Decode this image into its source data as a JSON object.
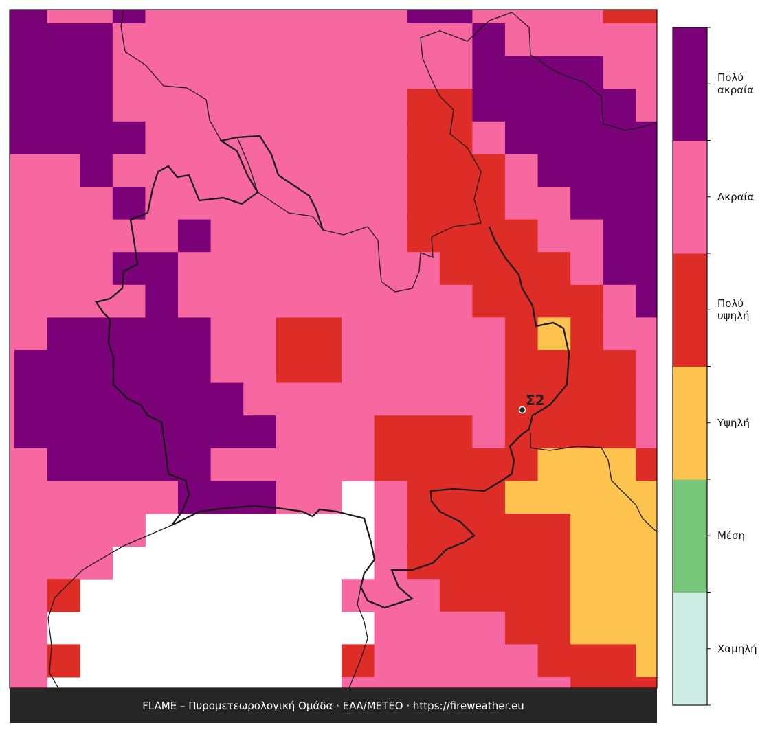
{
  "map": {
    "legend": [
      {
        "label": "Χαμηλή",
        "color": "#cdece4"
      },
      {
        "label": "Μέση",
        "color": "#78c679"
      },
      {
        "label": "Υψηλή",
        "color": "#fec44f"
      },
      {
        "label": "Πολύ υψηλή",
        "color": "#de2d26"
      },
      {
        "label": "Ακραία",
        "color": "#f768a1"
      },
      {
        "label": "Πολύ ακραία",
        "color": "#7a0177"
      }
    ],
    "grid": [
      [
        5,
        5,
        4,
        4,
        5,
        4,
        4,
        4,
        4,
        4,
        4,
        4,
        4,
        5,
        5,
        4,
        4,
        4,
        4,
        3,
        3
      ],
      [
        5,
        5,
        5,
        5,
        4,
        4,
        4,
        4,
        4,
        4,
        4,
        4,
        4,
        4,
        4,
        5,
        4,
        4,
        4,
        4,
        4
      ],
      [
        5,
        5,
        5,
        5,
        4,
        4,
        4,
        4,
        4,
        4,
        4,
        4,
        4,
        4,
        4,
        5,
        5,
        5,
        5,
        4,
        4
      ],
      [
        5,
        5,
        5,
        5,
        4,
        4,
        4,
        4,
        4,
        4,
        4,
        4,
        4,
        3,
        3,
        5,
        5,
        5,
        5,
        5,
        4
      ],
      [
        5,
        5,
        5,
        5,
        5,
        4,
        4,
        4,
        4,
        4,
        4,
        4,
        4,
        3,
        3,
        4,
        5,
        5,
        5,
        5,
        5
      ],
      [
        4,
        4,
        4,
        5,
        4,
        4,
        4,
        4,
        4,
        4,
        4,
        4,
        4,
        3,
        3,
        3,
        4,
        5,
        5,
        5,
        5
      ],
      [
        4,
        4,
        4,
        4,
        5,
        4,
        4,
        4,
        4,
        4,
        4,
        4,
        4,
        3,
        3,
        3,
        4,
        4,
        5,
        5,
        5
      ],
      [
        4,
        4,
        4,
        4,
        4,
        4,
        5,
        4,
        4,
        4,
        4,
        4,
        4,
        3,
        3,
        3,
        3,
        4,
        4,
        5,
        5
      ],
      [
        4,
        4,
        4,
        4,
        5,
        5,
        4,
        4,
        4,
        4,
        4,
        4,
        4,
        4,
        3,
        3,
        3,
        3,
        4,
        5,
        5
      ],
      [
        4,
        4,
        4,
        4,
        4,
        5,
        4,
        4,
        4,
        4,
        4,
        4,
        4,
        4,
        4,
        3,
        3,
        3,
        3,
        4,
        5
      ],
      [
        4,
        4,
        5,
        5,
        5,
        5,
        5,
        4,
        4,
        3,
        3,
        4,
        4,
        4,
        4,
        4,
        3,
        2,
        3,
        4,
        4
      ],
      [
        4,
        5,
        5,
        5,
        5,
        5,
        5,
        4,
        4,
        3,
        3,
        4,
        4,
        4,
        4,
        4,
        3,
        3,
        3,
        3,
        4
      ],
      [
        4,
        5,
        5,
        5,
        5,
        5,
        5,
        5,
        4,
        4,
        4,
        4,
        4,
        4,
        4,
        4,
        3,
        3,
        3,
        3,
        4
      ],
      [
        4,
        5,
        5,
        5,
        5,
        5,
        5,
        5,
        5,
        4,
        4,
        4,
        3,
        3,
        3,
        4,
        3,
        3,
        3,
        3,
        4
      ],
      [
        4,
        4,
        5,
        5,
        5,
        5,
        5,
        4,
        4,
        4,
        4,
        4,
        3,
        3,
        3,
        3,
        3,
        2,
        2,
        2,
        3
      ],
      [
        4,
        4,
        4,
        4,
        4,
        4,
        5,
        5,
        5,
        4,
        4,
        null,
        4,
        3,
        3,
        3,
        2,
        2,
        2,
        2,
        2
      ],
      [
        4,
        4,
        4,
        4,
        4,
        null,
        null,
        null,
        null,
        null,
        null,
        null,
        4,
        3,
        3,
        3,
        3,
        3,
        2,
        2,
        2
      ],
      [
        4,
        4,
        4,
        4,
        null,
        null,
        null,
        null,
        null,
        null,
        null,
        null,
        4,
        3,
        3,
        3,
        3,
        3,
        2,
        2,
        2
      ],
      [
        4,
        4,
        3,
        null,
        null,
        null,
        null,
        null,
        null,
        null,
        null,
        4,
        4,
        4,
        3,
        3,
        3,
        3,
        2,
        2,
        2
      ],
      [
        4,
        4,
        null,
        null,
        null,
        null,
        null,
        null,
        null,
        null,
        null,
        null,
        4,
        4,
        4,
        4,
        3,
        3,
        2,
        2,
        2
      ],
      [
        4,
        4,
        3,
        null,
        null,
        null,
        null,
        null,
        null,
        null,
        null,
        3,
        4,
        4,
        4,
        4,
        4,
        3,
        3,
        3,
        2
      ],
      [
        4,
        4,
        null,
        null,
        null,
        null,
        null,
        null,
        null,
        null,
        null,
        4,
        4,
        4,
        4,
        4,
        4,
        4,
        3,
        3,
        3
      ]
    ],
    "station": "Σ2",
    "footer": "FLAME – Πυρομετεωρολογική Ομάδα · ΕΑΑ/METEO · https://fireweather.eu"
  }
}
